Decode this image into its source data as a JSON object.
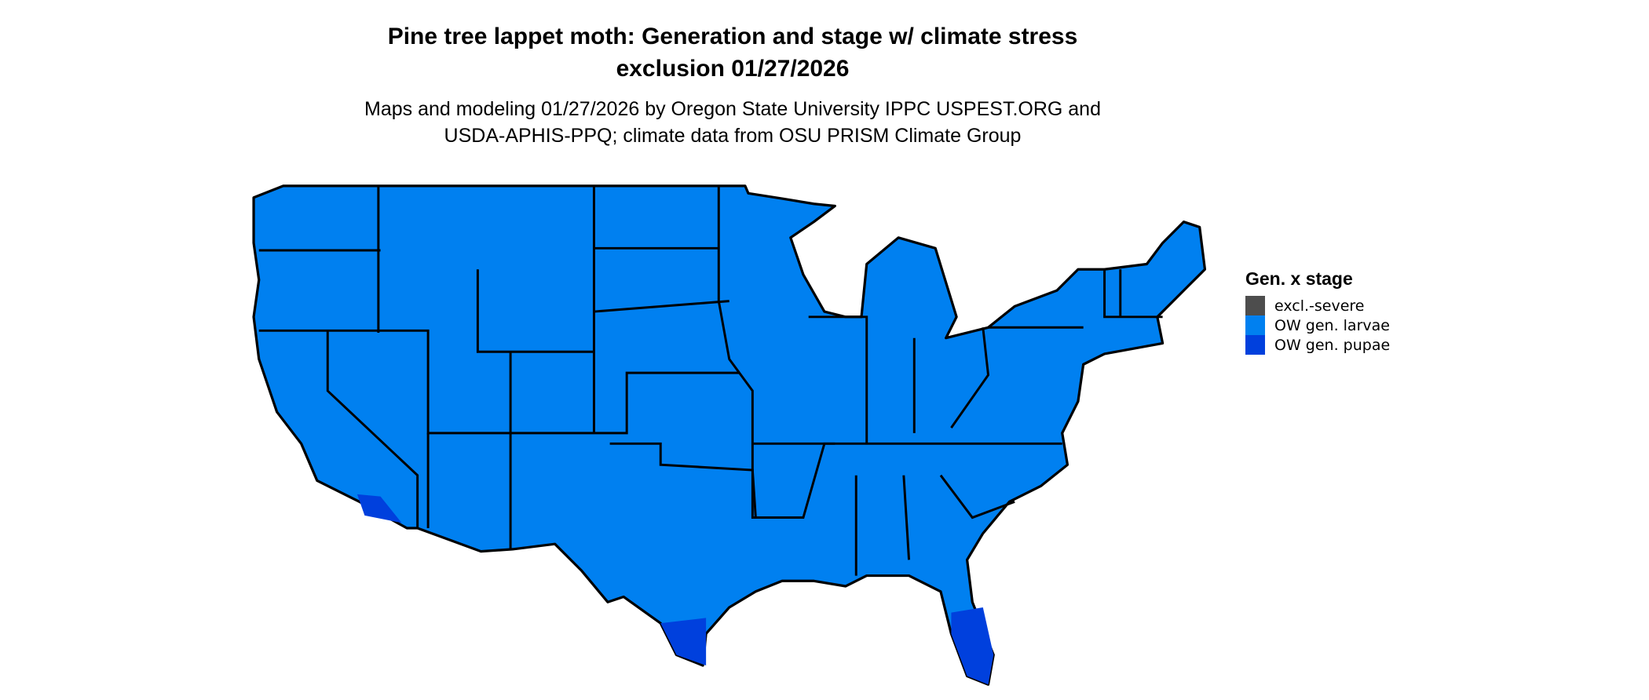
{
  "title_line1": "Pine tree lappet moth: Generation and stage w/ climate stress",
  "title_line2": "exclusion 01/27/2026",
  "subtitle_line1": "Maps and modeling 01/27/2026 by Oregon State University IPPC USPEST.ORG and",
  "subtitle_line2": "USDA-APHIS-PPQ; climate data from OSU PRISM Climate Group",
  "legend": {
    "title": "Gen. x stage",
    "items": [
      {
        "label": "excl.-severe",
        "color": "#4d4d4d"
      },
      {
        "label": "OW gen. larvae",
        "color": "#0080f0"
      },
      {
        "label": "OW gen. pupae",
        "color": "#0040dd"
      }
    ]
  },
  "map": {
    "region": "Contiguous United States",
    "dominant_category": "OW gen. larvae",
    "pupae_areas": [
      "South Florida",
      "South Texas",
      "Southern California coast"
    ],
    "border_color": "#000000"
  }
}
